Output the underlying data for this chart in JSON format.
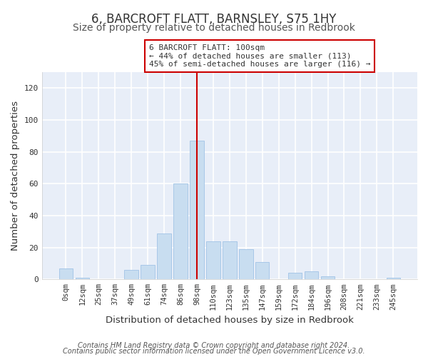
{
  "title": "6, BARCROFT FLATT, BARNSLEY, S75 1HY",
  "subtitle": "Size of property relative to detached houses in Redbrook",
  "xlabel": "Distribution of detached houses by size in Redbrook",
  "ylabel": "Number of detached properties",
  "bar_labels": [
    "0sqm",
    "12sqm",
    "25sqm",
    "37sqm",
    "49sqm",
    "61sqm",
    "74sqm",
    "86sqm",
    "98sqm",
    "110sqm",
    "123sqm",
    "135sqm",
    "147sqm",
    "159sqm",
    "172sqm",
    "184sqm",
    "196sqm",
    "208sqm",
    "221sqm",
    "233sqm",
    "245sqm"
  ],
  "bar_values": [
    7,
    1,
    0,
    0,
    6,
    9,
    29,
    60,
    87,
    24,
    24,
    19,
    11,
    0,
    4,
    5,
    2,
    0,
    0,
    0,
    1
  ],
  "bar_color": "#c8ddf0",
  "bar_edge_color": "#a8c8e8",
  "vline_x": 8,
  "vline_color": "#cc0000",
  "ylim": [
    0,
    130
  ],
  "yticks": [
    0,
    20,
    40,
    60,
    80,
    100,
    120
  ],
  "annotation_title": "6 BARCROFT FLATT: 100sqm",
  "annotation_line1": "← 44% of detached houses are smaller (113)",
  "annotation_line2": "45% of semi-detached houses are larger (116) →",
  "annotation_box_color": "#ffffff",
  "annotation_box_edge": "#cc0000",
  "footer1": "Contains HM Land Registry data © Crown copyright and database right 2024.",
  "footer2": "Contains public sector information licensed under the Open Government Licence v3.0.",
  "background_color": "#ffffff",
  "plot_bg_color": "#e8eef8",
  "grid_color": "#ffffff",
  "title_fontsize": 12,
  "subtitle_fontsize": 10,
  "axis_label_fontsize": 9.5,
  "tick_fontsize": 7.5,
  "footer_fontsize": 7,
  "annotation_fontsize": 8
}
